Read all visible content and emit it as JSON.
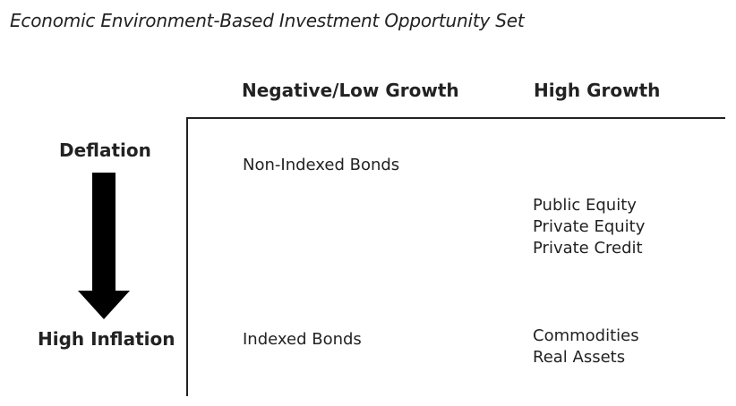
{
  "title": "Economic Environment-Based Investment Opportunity Set",
  "columns": {
    "low_growth": "Negative/Low Growth",
    "high_growth": "High Growth"
  },
  "rows": {
    "deflation": "Deflation",
    "high_inflation": "High Inflation"
  },
  "cells": {
    "low_growth_deflation": [
      "Non-Indexed Bonds"
    ],
    "high_growth_middle": [
      "Public Equity",
      "Private Equity",
      "Private Credit"
    ],
    "low_growth_inflation": [
      "Indexed Bonds"
    ],
    "high_growth_inflation": [
      "Commodities",
      "Real Assets"
    ]
  },
  "colors": {
    "text": "#222222",
    "lines": "#222222",
    "arrow": "#000000"
  }
}
